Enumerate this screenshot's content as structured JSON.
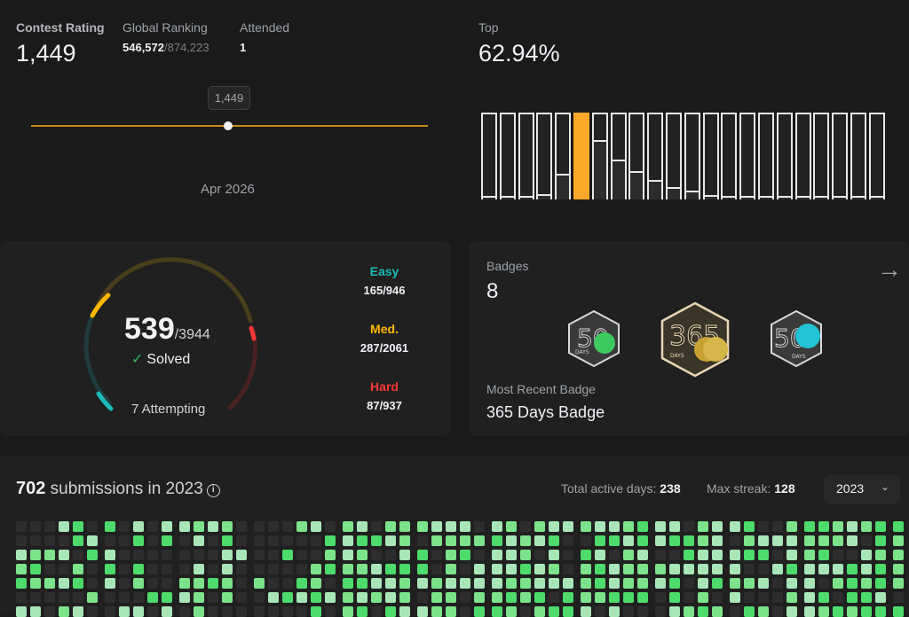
{
  "rating": {
    "contest_rating_label": "Contest Rating",
    "contest_rating_value": "1,449",
    "global_ranking_label": "Global Ranking",
    "global_ranking_value": "546,572",
    "global_ranking_total": "/874,223",
    "attended_label": "Attended",
    "attended_value": "1",
    "tooltip_value": "1,449",
    "date_label": "Apr 2026"
  },
  "top": {
    "label": "Top",
    "value": "62.94%",
    "highlight_color": "#f9a828",
    "histogram": [
      2,
      2,
      2,
      4,
      18,
      60,
      42,
      28,
      20,
      14,
      9,
      6,
      3,
      2,
      2,
      2,
      2,
      2,
      2,
      2,
      2,
      2
    ],
    "highlight_index": 5
  },
  "solved": {
    "count": "539",
    "total": "/3944",
    "label": "Solved",
    "attempting": "7 Attempting",
    "difficulties": [
      {
        "name": "Easy",
        "value": "165/946",
        "color": "#1cbaba"
      },
      {
        "name": "Med.",
        "value": "287/2061",
        "color": "#ffb700"
      },
      {
        "name": "Hard",
        "value": "87/937",
        "color": "#f63737"
      }
    ]
  },
  "badges": {
    "label": "Badges",
    "count": "8",
    "items": [
      {
        "name": "50-days-badge",
        "caption": "DAYS",
        "digits": "50"
      },
      {
        "name": "365-days-badge",
        "caption": "DAYS",
        "digits": "365"
      },
      {
        "name": "50-days-badge-2",
        "caption": "DAYS",
        "digits": "50"
      }
    ],
    "recent_label": "Most Recent Badge",
    "recent_value": "365 Days Badge"
  },
  "submissions": {
    "count": "702",
    "text": " submissions in 2023",
    "active_days_label": "Total active days: ",
    "active_days_value": "238",
    "max_streak_label": "Max streak: ",
    "max_streak_value": "128",
    "year": "2023"
  },
  "colors": {
    "level0": "#2d2d2d",
    "level1": "#a8e6b8",
    "level2": "#7ce38b",
    "level3": "#4ddb6b"
  }
}
